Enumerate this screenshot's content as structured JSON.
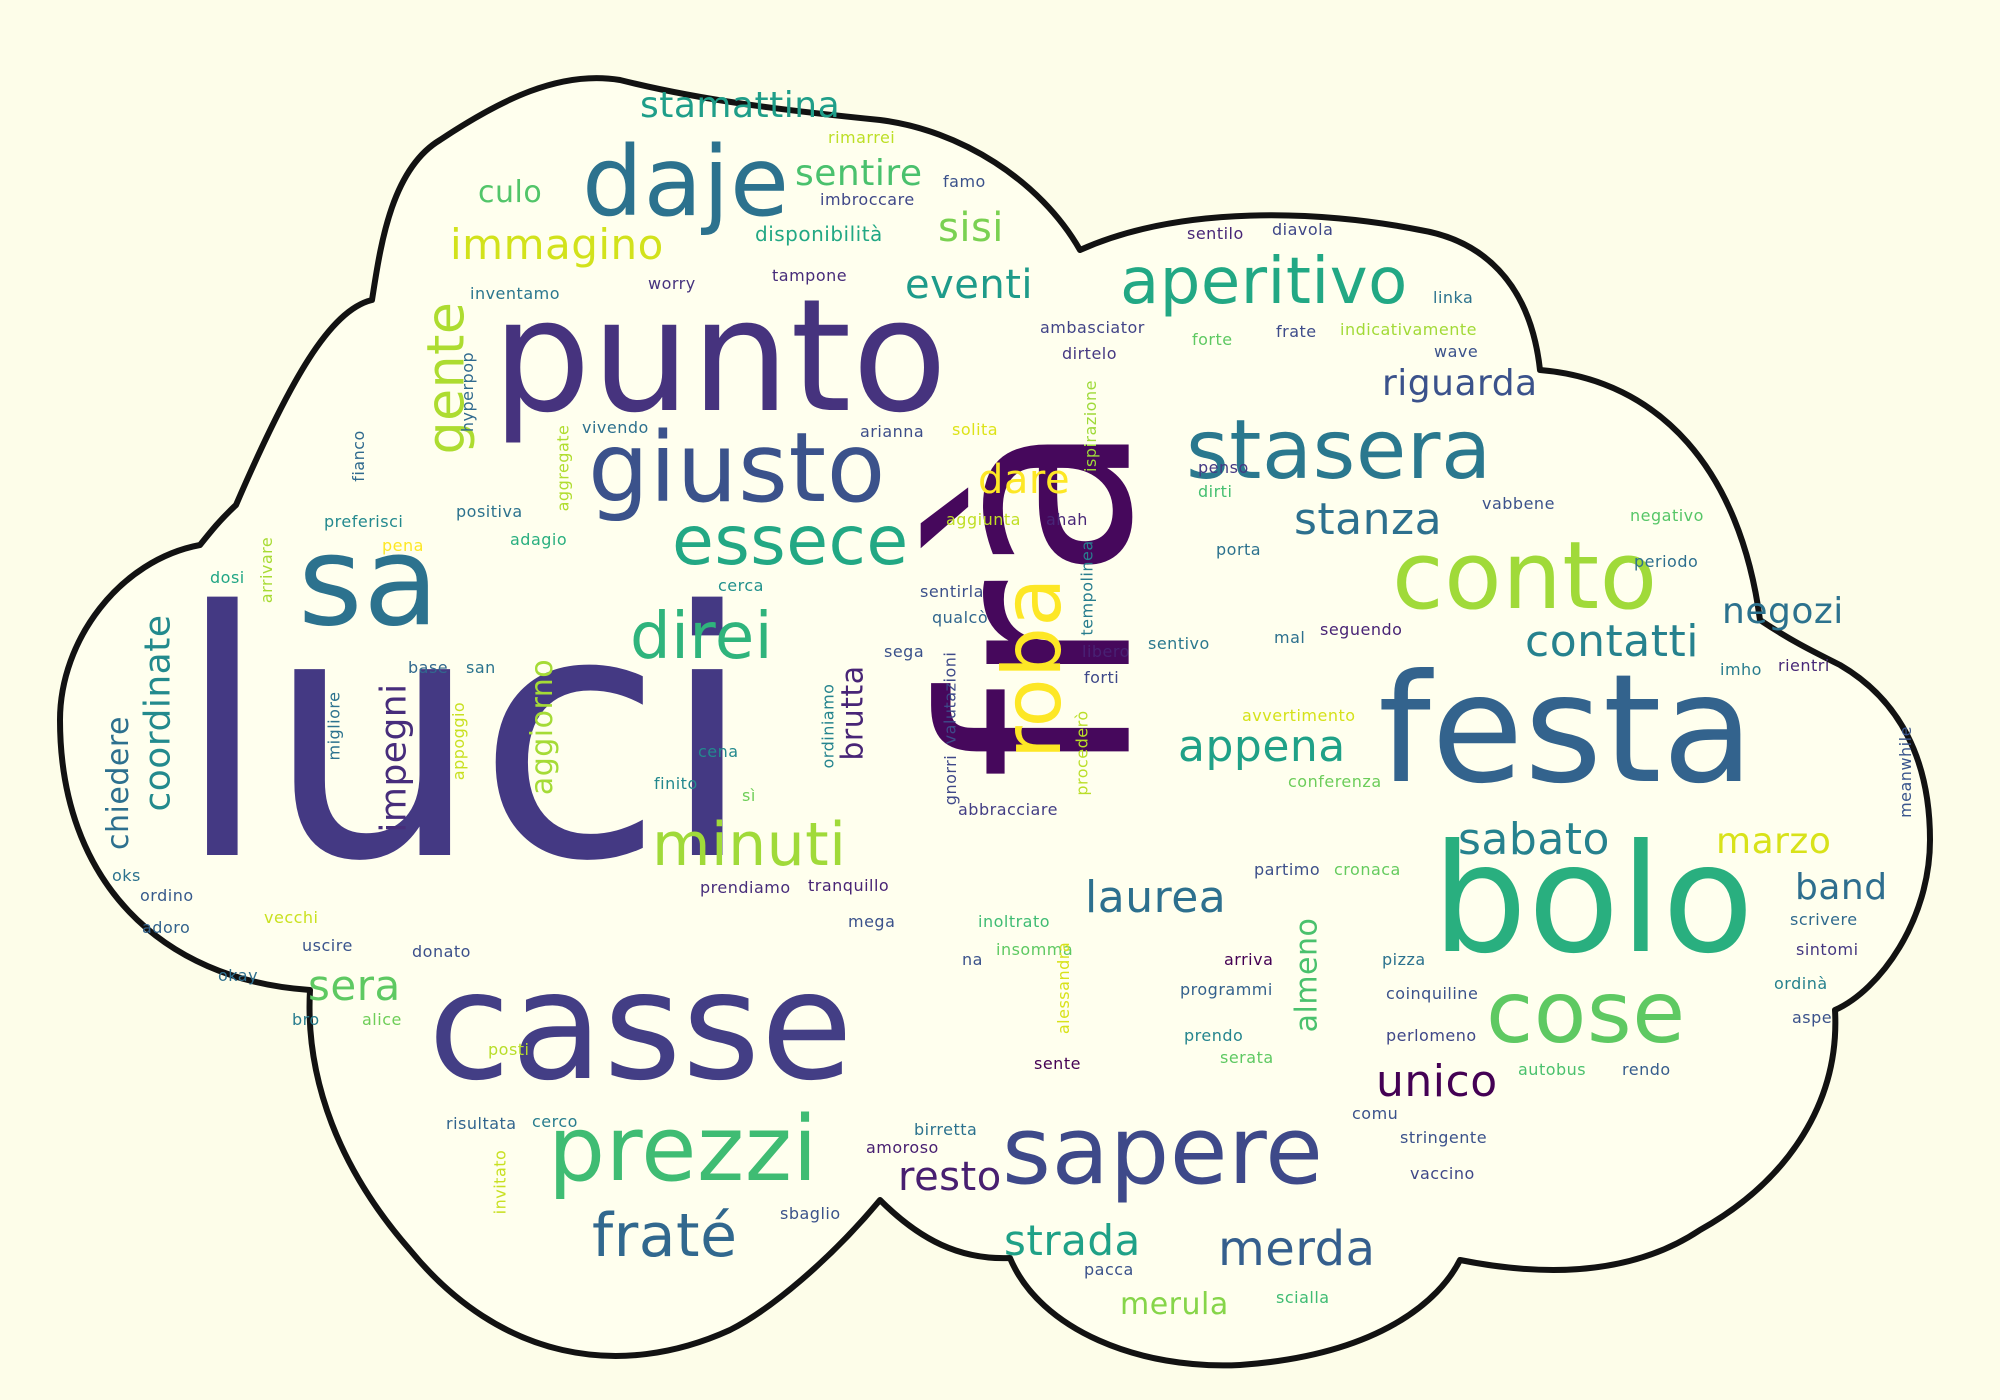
{
  "colors": {
    "background": "#fdfde9",
    "cloud_fill": "#ffffee",
    "cloud_stroke": "#121212"
  },
  "words": [
    {
      "text": "luci",
      "color": "#443983"
    },
    {
      "text": "frà",
      "color": "#46085c"
    },
    {
      "text": "festa",
      "color": "#33638d"
    },
    {
      "text": "punto",
      "color": "#46337e"
    },
    {
      "text": "casse",
      "color": "#433e85"
    },
    {
      "text": "bolo",
      "color": "#29af7f"
    },
    {
      "text": "sa",
      "color": "#2c728e"
    },
    {
      "text": "daje",
      "color": "#2c728e"
    },
    {
      "text": "giusto",
      "color": "#3b528b"
    },
    {
      "text": "stasera",
      "color": "#2a788e"
    },
    {
      "text": "conto",
      "color": "#a0da39"
    },
    {
      "text": "sapere",
      "color": "#3e4989"
    },
    {
      "text": "prezzi",
      "color": "#3fbc73"
    },
    {
      "text": "cose",
      "color": "#5ec962"
    },
    {
      "text": "aperitivo",
      "color": "#22a884"
    },
    {
      "text": "essece",
      "color": "#22a884"
    },
    {
      "text": "roba",
      "color": "#fde725"
    },
    {
      "text": "direi",
      "color": "#2fb47c"
    },
    {
      "text": "minuti",
      "color": "#a0da39"
    },
    {
      "text": "fraté",
      "color": "#31688e"
    },
    {
      "text": "merda",
      "color": "#355f8d"
    },
    {
      "text": "gente",
      "color": "#addc30"
    },
    {
      "text": "unico",
      "color": "#440154"
    },
    {
      "text": "strada",
      "color": "#1fa187"
    },
    {
      "text": "stanza",
      "color": "#2d708e"
    },
    {
      "text": "contatti",
      "color": "#26828e"
    },
    {
      "text": "sabato",
      "color": "#26828e"
    },
    {
      "text": "appena",
      "color": "#1fa187"
    },
    {
      "text": "laurea",
      "color": "#2d708e"
    },
    {
      "text": "sera",
      "color": "#5ec962"
    },
    {
      "text": "immagino",
      "color": "#d2e21b"
    },
    {
      "text": "stamattina",
      "color": "#1f9e89"
    },
    {
      "text": "sentire",
      "color": "#4ac16d"
    },
    {
      "text": "riguarda",
      "color": "#3b528b"
    },
    {
      "text": "negozi",
      "color": "#2c728e"
    },
    {
      "text": "marzo",
      "color": "#d8e219"
    },
    {
      "text": "band",
      "color": "#2e6e8e"
    },
    {
      "text": "eventi",
      "color": "#1e9b8a"
    },
    {
      "text": "sisi",
      "color": "#7ad151"
    },
    {
      "text": "dare",
      "color": "#fde725"
    },
    {
      "text": "resto",
      "color": "#481f70"
    },
    {
      "text": "merula",
      "color": "#86d549"
    },
    {
      "text": "coordinate",
      "color": "#238a8d"
    },
    {
      "text": "impegni",
      "color": "#472d7b"
    },
    {
      "text": "aggiorno",
      "color": "#a5db36"
    },
    {
      "text": "brutta",
      "color": "#482576"
    },
    {
      "text": "almeno",
      "color": "#4ac16d"
    },
    {
      "text": "chiedere",
      "color": "#2d708e"
    },
    {
      "text": "culo",
      "color": "#52c569"
    },
    {
      "text": "disponibilità",
      "color": "#22a884"
    },
    {
      "text": "imbroccare",
      "color": "#3f4788"
    },
    {
      "text": "rimarrei",
      "color": "#bddf26"
    },
    {
      "text": "famo",
      "color": "#3b528b"
    },
    {
      "text": "worry",
      "color": "#46337e"
    },
    {
      "text": "tampone",
      "color": "#472c7a"
    },
    {
      "text": "inventamo",
      "color": "#2a768e"
    },
    {
      "text": "sentilo",
      "color": "#482677"
    },
    {
      "text": "diavola",
      "color": "#3f4788"
    },
    {
      "text": "linka",
      "color": "#2c738e"
    },
    {
      "text": "ambasciator",
      "color": "#414487"
    },
    {
      "text": "dirtelo",
      "color": "#453882"
    },
    {
      "text": "forte",
      "color": "#5ec962"
    },
    {
      "text": "frate",
      "color": "#3e4c8a"
    },
    {
      "text": "indicativamente",
      "color": "#a2da37"
    },
    {
      "text": "wave",
      "color": "#3b528b"
    },
    {
      "text": "hyperpop",
      "color": "#306a8e"
    },
    {
      "text": "vivendo",
      "color": "#2d708e"
    },
    {
      "text": "arianna",
      "color": "#3d4e8a"
    },
    {
      "text": "solita",
      "color": "#dde318"
    },
    {
      "text": "ispirazione",
      "color": "#9fda3a"
    },
    {
      "text": "fianco",
      "color": "#306a8e"
    },
    {
      "text": "aggregate",
      "color": "#b0dd2f"
    },
    {
      "text": "penso",
      "color": "#443983"
    },
    {
      "text": "dirti",
      "color": "#44bf70"
    },
    {
      "text": "vabbene",
      "color": "#3b528b"
    },
    {
      "text": "negativo",
      "color": "#56c667"
    },
    {
      "text": "preferisci",
      "color": "#23898e"
    },
    {
      "text": "positiva",
      "color": "#2c728e"
    },
    {
      "text": "adagio",
      "color": "#29af7f"
    },
    {
      "text": "aggiunta",
      "color": "#c0df25"
    },
    {
      "text": "ahah",
      "color": "#482677"
    },
    {
      "text": "porta",
      "color": "#2c728e"
    },
    {
      "text": "periodo",
      "color": "#2e6f8e"
    },
    {
      "text": "pena",
      "color": "#fde725"
    },
    {
      "text": "dosi",
      "color": "#21a685"
    },
    {
      "text": "arrivare",
      "color": "#a8db34"
    },
    {
      "text": "cerca",
      "color": "#21918c"
    },
    {
      "text": "sentirla",
      "color": "#3c508b"
    },
    {
      "text": "qualcò",
      "color": "#31668e"
    },
    {
      "text": "tempolinea",
      "color": "#287d8e"
    },
    {
      "text": "libero",
      "color": "#482173"
    },
    {
      "text": "sentivo",
      "color": "#2a788e"
    },
    {
      "text": "mal",
      "color": "#2d708e"
    },
    {
      "text": "seguendo",
      "color": "#482475"
    },
    {
      "text": "base",
      "color": "#31688e"
    },
    {
      "text": "san",
      "color": "#2b748e"
    },
    {
      "text": "sega",
      "color": "#3b528b"
    },
    {
      "text": "valutazioni",
      "color": "#3e4a89"
    },
    {
      "text": "forti",
      "color": "#3e4989"
    },
    {
      "text": "imho",
      "color": "#287c8e"
    },
    {
      "text": "rientri",
      "color": "#482878"
    },
    {
      "text": "migliore",
      "color": "#2c728e"
    },
    {
      "text": "ordiniamo",
      "color": "#25848e"
    },
    {
      "text": "appoggio",
      "color": "#c8e020"
    },
    {
      "text": "avvertimento",
      "color": "#d5e21a"
    },
    {
      "text": "conferenza",
      "color": "#6ccd5a"
    },
    {
      "text": "procederò",
      "color": "#bade28"
    },
    {
      "text": "gnorri",
      "color": "#3f4889"
    },
    {
      "text": "cena",
      "color": "#23898e"
    },
    {
      "text": "finito",
      "color": "#23888e"
    },
    {
      "text": "sì",
      "color": "#6ece58"
    },
    {
      "text": "abbracciare",
      "color": "#433e85"
    },
    {
      "text": "meanwhile",
      "color": "#39558c"
    },
    {
      "text": "oks",
      "color": "#2c728e"
    },
    {
      "text": "ordino",
      "color": "#375a8c"
    },
    {
      "text": "prendiamo",
      "color": "#472d7b"
    },
    {
      "text": "tranquillo",
      "color": "#482475"
    },
    {
      "text": "partimo",
      "color": "#3c4f8a"
    },
    {
      "text": "cronaca",
      "color": "#65cb5e"
    },
    {
      "text": "adoro",
      "color": "#33638d"
    },
    {
      "text": "vecchi",
      "color": "#cae11f"
    },
    {
      "text": "mega",
      "color": "#3b528b"
    },
    {
      "text": "inoltrato",
      "color": "#3fbc73"
    },
    {
      "text": "scrivere",
      "color": "#306a8e"
    },
    {
      "text": "uscire",
      "color": "#3a548c"
    },
    {
      "text": "donato",
      "color": "#3c508b"
    },
    {
      "text": "na",
      "color": "#3b528b"
    },
    {
      "text": "insomma",
      "color": "#5ec962"
    },
    {
      "text": "arriva",
      "color": "#440154"
    },
    {
      "text": "pizza",
      "color": "#2c728e"
    },
    {
      "text": "sintomi",
      "color": "#453882"
    },
    {
      "text": "okay",
      "color": "#2e6f8e"
    },
    {
      "text": "alessandra",
      "color": "#d8e219"
    },
    {
      "text": "programmi",
      "color": "#34618d"
    },
    {
      "text": "coinquiline",
      "color": "#3b528b"
    },
    {
      "text": "ordinà",
      "color": "#26818e"
    },
    {
      "text": "bro",
      "color": "#287c8e"
    },
    {
      "text": "alice",
      "color": "#6ece58"
    },
    {
      "text": "aspe",
      "color": "#3b528b"
    },
    {
      "text": "prendo",
      "color": "#25858e"
    },
    {
      "text": "perlomeno",
      "color": "#3f4788"
    },
    {
      "text": "posti",
      "color": "#b8de29"
    },
    {
      "text": "sente",
      "color": "#440154"
    },
    {
      "text": "serata",
      "color": "#5ec962"
    },
    {
      "text": "autobus",
      "color": "#4ac16d"
    },
    {
      "text": "rendo",
      "color": "#365d8d"
    },
    {
      "text": "risultata",
      "color": "#32658e"
    },
    {
      "text": "cerco",
      "color": "#287d8e"
    },
    {
      "text": "comu",
      "color": "#3b528b"
    },
    {
      "text": "birretta",
      "color": "#2c728e"
    },
    {
      "text": "stringente",
      "color": "#3b528b"
    },
    {
      "text": "amoroso",
      "color": "#482071"
    },
    {
      "text": "invitato",
      "color": "#c8e020"
    },
    {
      "text": "vaccino",
      "color": "#3f4788"
    },
    {
      "text": "sbaglio",
      "color": "#3b528b"
    },
    {
      "text": "pacca",
      "color": "#3b528b"
    },
    {
      "text": "scialla",
      "color": "#3fbc73"
    }
  ]
}
